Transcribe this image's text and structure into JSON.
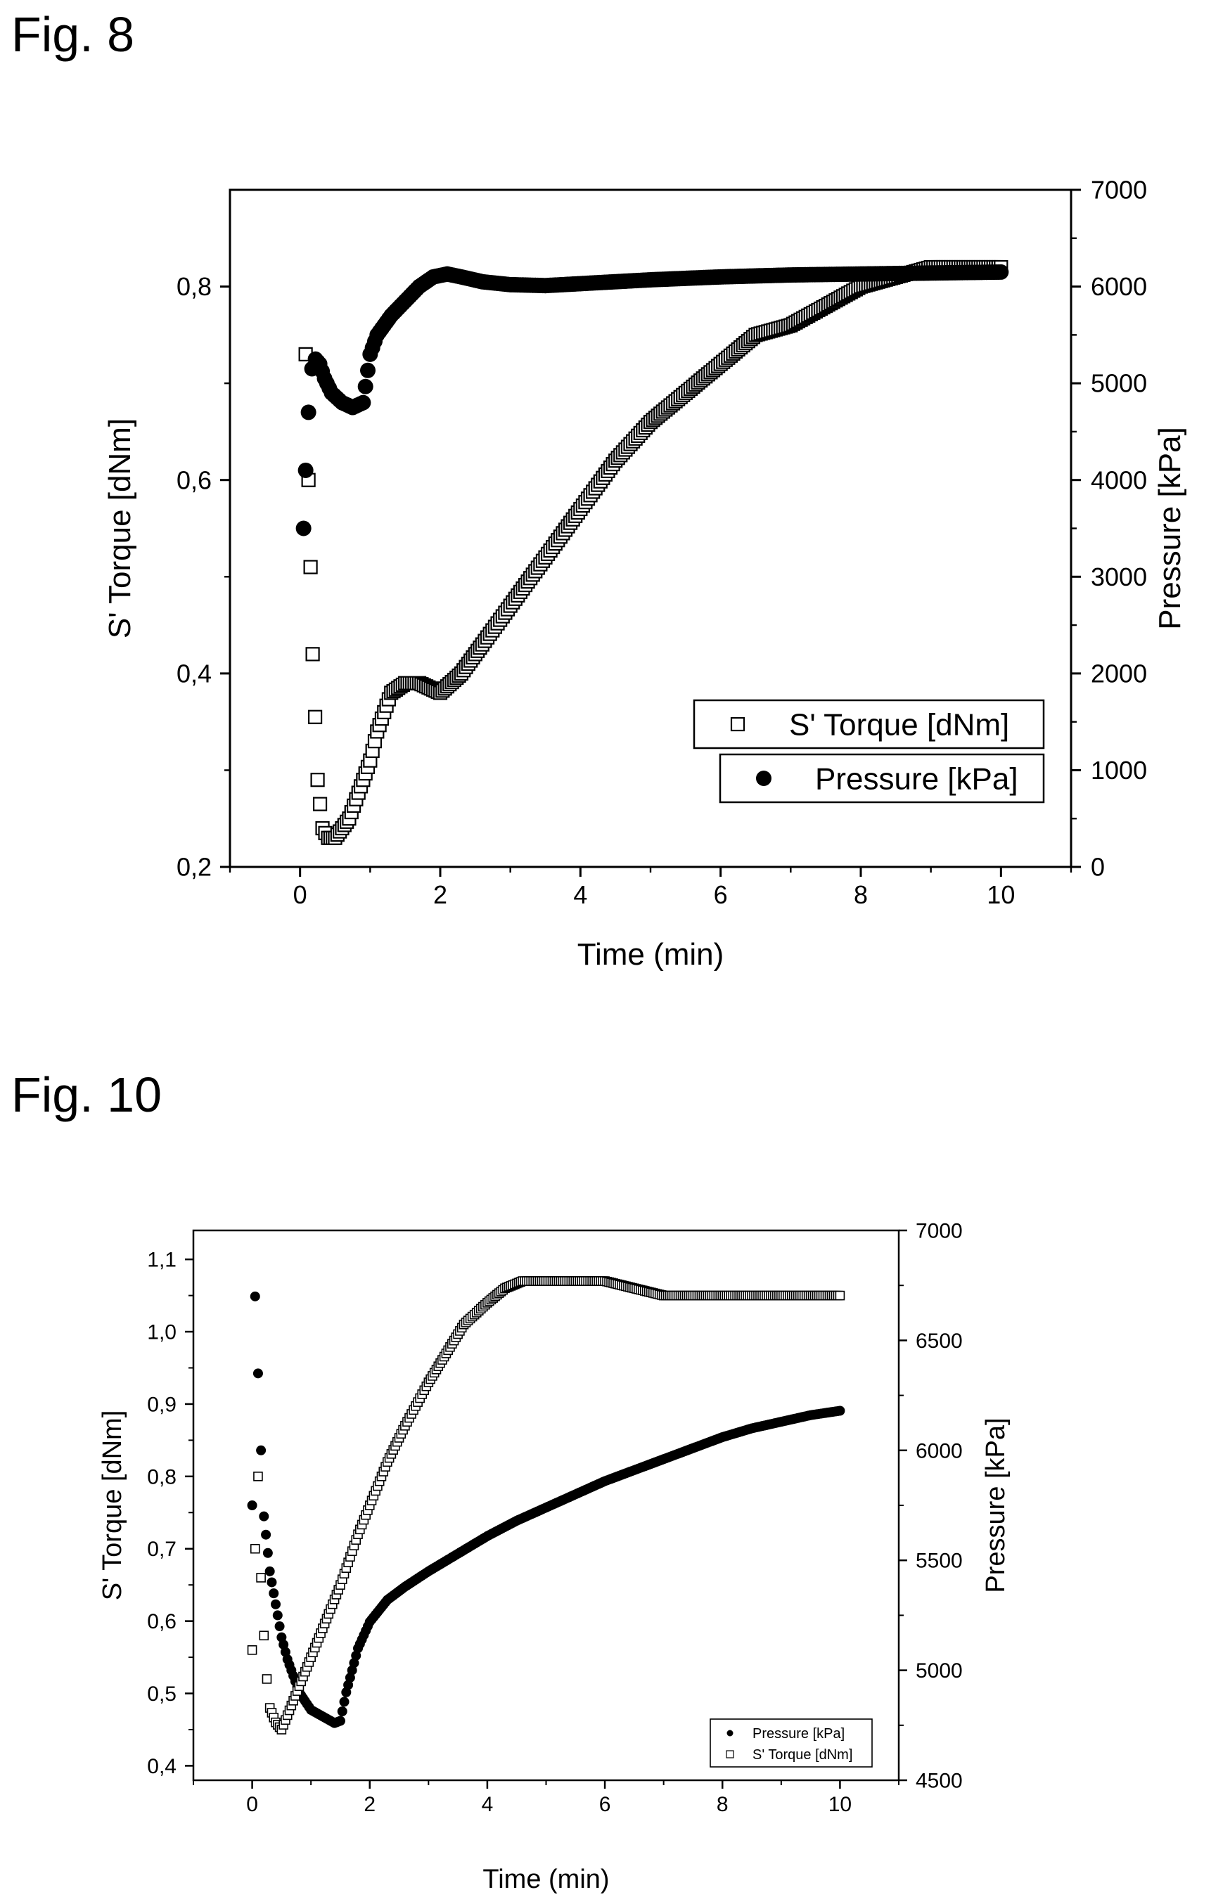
{
  "figures": [
    {
      "label": "Fig. 8",
      "chart_data": {
        "type": "scatter",
        "title": "",
        "xlabel": "Time (min)",
        "ylabel_left": "S' Torque [dNm]",
        "ylabel_right": "Pressure [kPa]",
        "xlim": [
          -1,
          11
        ],
        "ylim_left": [
          0.2,
          0.9
        ],
        "ylim_right": [
          0,
          7000
        ],
        "xticks": [
          0,
          2,
          4,
          6,
          8,
          10
        ],
        "xtick_labels": [
          "0",
          "2",
          "4",
          "6",
          "8",
          "10"
        ],
        "yticks_left": [
          0.2,
          0.4,
          0.6,
          0.8
        ],
        "ytick_labels_left": [
          "0,2",
          "0,4",
          "0,6",
          "0,8"
        ],
        "yticks_right": [
          0,
          1000,
          2000,
          3000,
          4000,
          5000,
          6000,
          7000
        ],
        "ytick_labels_right": [
          "0",
          "1000",
          "2000",
          "3000",
          "4000",
          "5000",
          "6000",
          "7000"
        ],
        "grid": false,
        "legend_position": "bottom-right",
        "legend_style": "separate-boxes",
        "series": [
          {
            "name": "S' Torque [dNm]",
            "axis": "left",
            "marker": "open-square",
            "color": "#000000",
            "x": [
              0.08,
              0.12,
              0.18,
              0.25,
              0.32,
              0.4,
              0.5,
              0.6,
              0.7,
              0.8,
              0.9,
              1.0,
              1.1,
              1.2,
              1.3,
              1.5,
              1.7,
              2.0,
              2.3,
              2.6,
              3.0,
              3.5,
              4.0,
              4.5,
              5.0,
              5.5,
              6.0,
              6.5,
              7.0,
              7.5,
              8.0,
              8.5,
              9.0,
              9.5,
              10.0
            ],
            "y": [
              0.73,
              0.6,
              0.42,
              0.29,
              0.24,
              0.23,
              0.23,
              0.24,
              0.25,
              0.27,
              0.29,
              0.31,
              0.34,
              0.36,
              0.38,
              0.39,
              0.39,
              0.38,
              0.4,
              0.43,
              0.47,
              0.52,
              0.57,
              0.62,
              0.66,
              0.69,
              0.72,
              0.75,
              0.76,
              0.78,
              0.8,
              0.81,
              0.82,
              0.82,
              0.82
            ]
          },
          {
            "name": "Pressure [kPa]",
            "axis": "right",
            "marker": "filled-circle",
            "color": "#000000",
            "x": [
              0.05,
              0.08,
              0.12,
              0.17,
              0.22,
              0.28,
              0.35,
              0.45,
              0.6,
              0.75,
              0.9,
              1.0,
              1.1,
              1.3,
              1.5,
              1.7,
              1.9,
              2.1,
              2.3,
              2.6,
              3.0,
              3.5,
              4.0,
              5.0,
              6.0,
              7.0,
              8.0,
              9.0,
              10.0
            ],
            "y": [
              3500,
              4100,
              4700,
              5150,
              5250,
              5200,
              5050,
              4900,
              4800,
              4750,
              4800,
              5300,
              5500,
              5700,
              5850,
              6000,
              6100,
              6130,
              6100,
              6050,
              6020,
              6010,
              6030,
              6070,
              6100,
              6120,
              6130,
              6140,
              6150
            ]
          }
        ]
      }
    },
    {
      "label": "Fig. 10",
      "chart_data": {
        "type": "scatter",
        "title": "",
        "xlabel": "Time (min)",
        "ylabel_left": "S' Torque [dNm]",
        "ylabel_right": "Pressure [kPa]",
        "xlim": [
          -1,
          11
        ],
        "ylim_left": [
          0.38,
          1.14
        ],
        "ylim_right": [
          4500,
          7000
        ],
        "xticks": [
          0,
          2,
          4,
          6,
          8,
          10
        ],
        "xtick_labels": [
          "0",
          "2",
          "4",
          "6",
          "8",
          "10"
        ],
        "yticks_left": [
          0.4,
          0.5,
          0.6,
          0.7,
          0.8,
          0.9,
          1.0,
          1.1
        ],
        "ytick_labels_left": [
          "0,4",
          "0,5",
          "0,6",
          "0,7",
          "0,8",
          "0,9",
          "1,0",
          "1,1"
        ],
        "yticks_right": [
          4500,
          5000,
          5500,
          6000,
          6500,
          7000
        ],
        "ytick_labels_right": [
          "4500",
          "5000",
          "5500",
          "6000",
          "6500",
          "7000"
        ],
        "grid": false,
        "legend_position": "bottom-right",
        "legend_style": "single-box",
        "series": [
          {
            "name": "Pressure [kPa]",
            "axis": "right",
            "marker": "filled-circle",
            "color": "#000000",
            "x": [
              0.0,
              0.05,
              0.1,
              0.15,
              0.2,
              0.3,
              0.4,
              0.5,
              0.6,
              0.8,
              1.0,
              1.2,
              1.4,
              1.5,
              1.6,
              1.8,
              2.0,
              2.3,
              2.6,
              3.0,
              3.5,
              4.0,
              4.5,
              5.0,
              5.5,
              6.0,
              6.5,
              7.0,
              7.5,
              8.0,
              8.5,
              9.0,
              9.5,
              10.0
            ],
            "y": [
              5750,
              6700,
              6350,
              6000,
              5700,
              5450,
              5300,
              5150,
              5050,
              4900,
              4820,
              4790,
              4760,
              4770,
              4900,
              5100,
              5220,
              5320,
              5380,
              5450,
              5530,
              5610,
              5680,
              5740,
              5800,
              5860,
              5910,
              5960,
              6010,
              6060,
              6100,
              6130,
              6160,
              6180
            ]
          },
          {
            "name": "S' Torque [dNm]",
            "axis": "left",
            "marker": "open-square",
            "color": "#000000",
            "x": [
              0.0,
              0.05,
              0.1,
              0.15,
              0.2,
              0.25,
              0.3,
              0.4,
              0.5,
              0.6,
              0.7,
              0.8,
              1.0,
              1.2,
              1.5,
              1.8,
              2.0,
              2.3,
              2.6,
              3.0,
              3.3,
              3.6,
              4.0,
              4.3,
              4.6,
              5.0,
              5.5,
              6.0,
              6.5,
              7.0,
              7.5,
              8.0,
              8.5,
              9.0,
              9.5,
              10.0
            ],
            "y": [
              0.56,
              0.7,
              0.8,
              0.66,
              0.58,
              0.52,
              0.48,
              0.46,
              0.45,
              0.47,
              0.49,
              0.51,
              0.55,
              0.59,
              0.65,
              0.72,
              0.76,
              0.82,
              0.87,
              0.93,
              0.97,
              1.01,
              1.04,
              1.06,
              1.07,
              1.07,
              1.07,
              1.07,
              1.06,
              1.05,
              1.05,
              1.05,
              1.05,
              1.05,
              1.05,
              1.05
            ]
          }
        ]
      }
    }
  ]
}
